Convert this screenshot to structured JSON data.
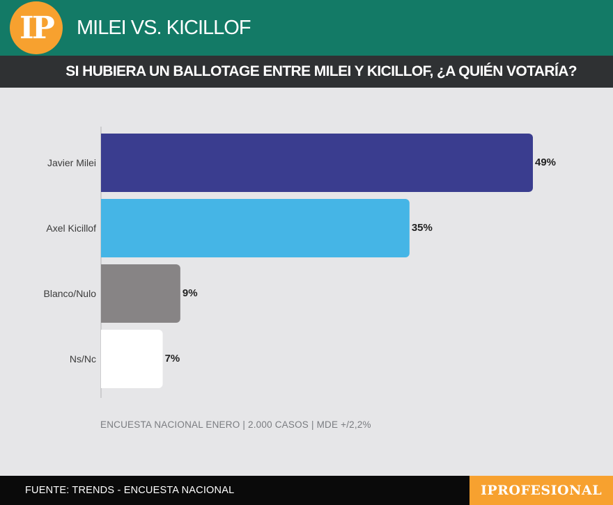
{
  "header": {
    "logo_text": "IP",
    "title": "MILEI VS. KICILLOF"
  },
  "subheader": {
    "question": "SI HUBIERA UN BALLOTAGE ENTRE MILEI Y KICILLOF, ¿A QUIÉN VOTARÍA?"
  },
  "chart_data": {
    "type": "bar",
    "orientation": "horizontal",
    "categories": [
      "Javier Milei",
      "Axel Kicillof",
      "Blanco/Nulo",
      "Ns/Nc"
    ],
    "values": [
      49,
      35,
      9,
      7
    ],
    "value_labels": [
      "49%",
      "35%",
      "9%",
      "7%"
    ],
    "colors": [
      "#3a3d8f",
      "#45b5e6",
      "#878485",
      "#ffffff"
    ],
    "xlim": [
      0,
      49
    ],
    "grid": false
  },
  "note": "ENCUESTA NACIONAL ENERO | 2.000 CASOS | MDE +/2,2%",
  "footer": {
    "source": "FUENTE: TRENDS - ENCUESTA NACIONAL",
    "brand": "IPROFESIONAL"
  }
}
